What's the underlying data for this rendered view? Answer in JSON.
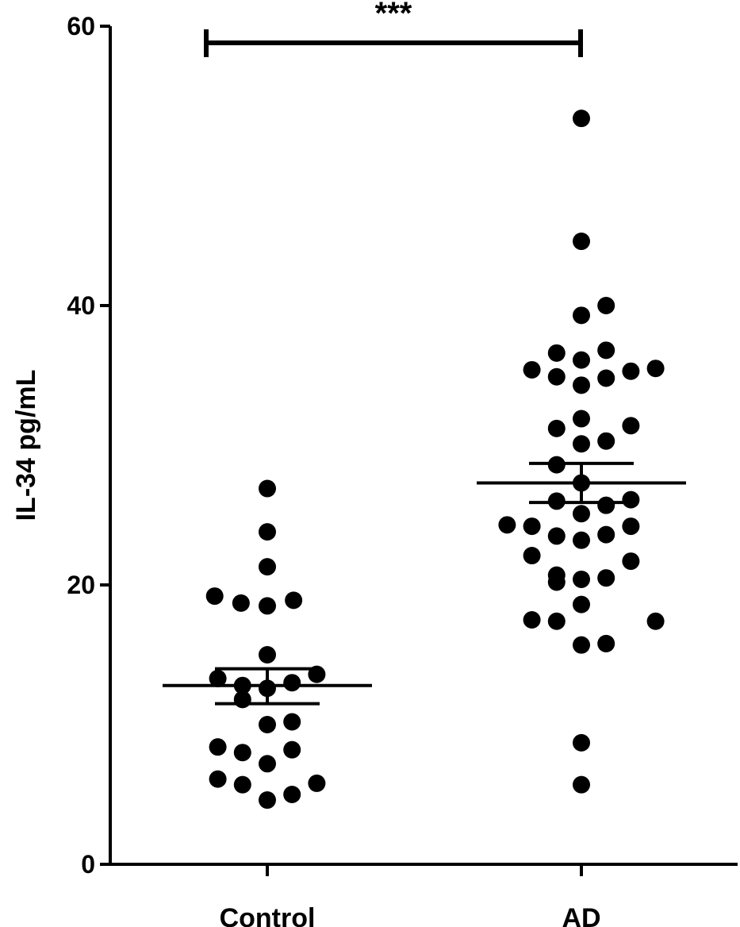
{
  "chart_data": {
    "type": "scatter",
    "chart_subtype": "dot plot with mean and SEM",
    "ylabel": "IL-34 pg/mL",
    "ylim": [
      0,
      60
    ],
    "yticks": [
      0,
      20,
      40,
      60
    ],
    "categories": [
      "Control",
      "AD"
    ],
    "groups": [
      {
        "name": "Control",
        "mean": 12.8,
        "sem_upper": 14.0,
        "sem_lower": 11.5,
        "points": [
          {
            "x": 0.0,
            "y": 26.9
          },
          {
            "x": 0.0,
            "y": 23.8
          },
          {
            "x": 0.0,
            "y": 21.3
          },
          {
            "x": -0.34,
            "y": 19.2
          },
          {
            "x": -0.17,
            "y": 18.7
          },
          {
            "x": 0.0,
            "y": 18.5
          },
          {
            "x": 0.17,
            "y": 18.9
          },
          {
            "x": 0.0,
            "y": 15.0
          },
          {
            "x": -0.32,
            "y": 13.3
          },
          {
            "x": 0.32,
            "y": 13.6
          },
          {
            "x": -0.16,
            "y": 12.8
          },
          {
            "x": 0.0,
            "y": 12.6
          },
          {
            "x": 0.16,
            "y": 13.0
          },
          {
            "x": -0.16,
            "y": 11.8
          },
          {
            "x": 0.0,
            "y": 10.0
          },
          {
            "x": 0.16,
            "y": 10.2
          },
          {
            "x": -0.32,
            "y": 8.4
          },
          {
            "x": -0.16,
            "y": 8.0
          },
          {
            "x": 0.16,
            "y": 8.2
          },
          {
            "x": 0.0,
            "y": 7.2
          },
          {
            "x": -0.32,
            "y": 6.1
          },
          {
            "x": -0.16,
            "y": 5.7
          },
          {
            "x": 0.32,
            "y": 5.8
          },
          {
            "x": 0.16,
            "y": 5.0
          },
          {
            "x": 0.0,
            "y": 4.6
          }
        ]
      },
      {
        "name": "AD",
        "mean": 27.3,
        "sem_upper": 28.7,
        "sem_lower": 25.9,
        "points": [
          {
            "x": 0.0,
            "y": 53.4
          },
          {
            "x": 0.0,
            "y": 44.6
          },
          {
            "x": 0.0,
            "y": 39.3
          },
          {
            "x": 0.16,
            "y": 40.0
          },
          {
            "x": -0.16,
            "y": 36.6
          },
          {
            "x": 0.0,
            "y": 36.1
          },
          {
            "x": 0.16,
            "y": 36.8
          },
          {
            "x": -0.32,
            "y": 35.4
          },
          {
            "x": -0.16,
            "y": 34.9
          },
          {
            "x": 0.0,
            "y": 34.3
          },
          {
            "x": 0.16,
            "y": 34.8
          },
          {
            "x": 0.32,
            "y": 35.3
          },
          {
            "x": 0.48,
            "y": 35.5
          },
          {
            "x": 0.0,
            "y": 31.9
          },
          {
            "x": -0.16,
            "y": 31.2
          },
          {
            "x": 0.32,
            "y": 31.4
          },
          {
            "x": 0.0,
            "y": 30.1
          },
          {
            "x": 0.16,
            "y": 30.3
          },
          {
            "x": -0.16,
            "y": 28.6
          },
          {
            "x": 0.0,
            "y": 27.3
          },
          {
            "x": -0.16,
            "y": 26.0
          },
          {
            "x": 0.0,
            "y": 25.1
          },
          {
            "x": 0.16,
            "y": 25.7
          },
          {
            "x": 0.32,
            "y": 26.1
          },
          {
            "x": -0.48,
            "y": 24.3
          },
          {
            "x": -0.32,
            "y": 24.2
          },
          {
            "x": -0.16,
            "y": 23.5
          },
          {
            "x": 0.0,
            "y": 23.2
          },
          {
            "x": 0.16,
            "y": 23.6
          },
          {
            "x": 0.32,
            "y": 24.2
          },
          {
            "x": -0.32,
            "y": 22.1
          },
          {
            "x": 0.32,
            "y": 21.7
          },
          {
            "x": -0.16,
            "y": 20.7
          },
          {
            "x": 0.0,
            "y": 20.4
          },
          {
            "x": 0.16,
            "y": 20.5
          },
          {
            "x": -0.16,
            "y": 20.2
          },
          {
            "x": 0.0,
            "y": 18.6
          },
          {
            "x": -0.32,
            "y": 17.5
          },
          {
            "x": -0.16,
            "y": 17.4
          },
          {
            "x": 0.48,
            "y": 17.4
          },
          {
            "x": 0.0,
            "y": 15.7
          },
          {
            "x": 0.16,
            "y": 15.8
          },
          {
            "x": 0.0,
            "y": 8.7
          },
          {
            "x": 0.0,
            "y": 5.7
          }
        ]
      }
    ],
    "significance": {
      "groups": [
        "Control",
        "AD"
      ],
      "label": "***"
    }
  }
}
